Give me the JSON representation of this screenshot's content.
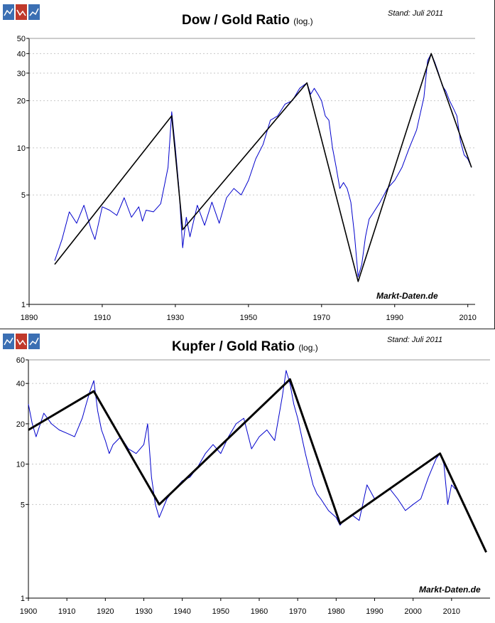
{
  "colors": {
    "series": "#0000cc",
    "trend": "#000000",
    "grid": "#c8c8c8",
    "logo_blue": "#3b6fb3",
    "logo_red": "#c0392b"
  },
  "chart_data": [
    {
      "type": "line",
      "title": "Dow / Gold Ratio",
      "title_suffix": "(log.)",
      "stand": "Stand: Juli 2011",
      "watermark": "Markt-Daten.de",
      "yscale": "log",
      "xlim": [
        1890,
        2012
      ],
      "ylim": [
        1,
        50
      ],
      "xticks": [
        1890,
        1910,
        1930,
        1950,
        1970,
        1990,
        2010
      ],
      "yticks": [
        1,
        5,
        10,
        20,
        30,
        40,
        50
      ],
      "gridlines": [
        5,
        10,
        20,
        30,
        40,
        50
      ],
      "series": [
        {
          "name": "Dow / Gold Ratio",
          "x": [
            1897,
            1899,
            1901,
            1903,
            1905,
            1907,
            1908,
            1910,
            1912,
            1914,
            1916,
            1918,
            1920,
            1921,
            1922,
            1924,
            1926,
            1928,
            1929,
            1930,
            1931,
            1932,
            1933,
            1934,
            1936,
            1938,
            1940,
            1942,
            1944,
            1946,
            1948,
            1950,
            1952,
            1954,
            1956,
            1958,
            1960,
            1962,
            1964,
            1966,
            1967,
            1968,
            1969,
            1970,
            1971,
            1972,
            1973,
            1974,
            1975,
            1976,
            1977,
            1978,
            1979,
            1980,
            1981,
            1982,
            1983,
            1984,
            1986,
            1988,
            1990,
            1992,
            1994,
            1996,
            1998,
            1999,
            2000,
            2001,
            2002,
            2003,
            2004,
            2005,
            2006,
            2007,
            2008,
            2009,
            2010,
            2011
          ],
          "y": [
            1.9,
            2.6,
            3.9,
            3.3,
            4.3,
            3.0,
            2.6,
            4.2,
            4.0,
            3.7,
            4.8,
            3.6,
            4.2,
            3.4,
            4.0,
            3.9,
            4.4,
            7.5,
            17,
            10,
            5.5,
            2.3,
            3.6,
            2.7,
            4.3,
            3.2,
            4.5,
            3.3,
            4.8,
            5.5,
            5.0,
            6.2,
            8.5,
            10.5,
            15,
            16,
            19,
            20,
            24,
            26,
            22,
            24,
            22,
            20,
            16,
            15,
            10,
            7.5,
            5.5,
            6.0,
            5.5,
            4.5,
            2.8,
            1.5,
            1.8,
            2.7,
            3.5,
            3.8,
            4.5,
            5.5,
            6.2,
            7.5,
            10,
            13,
            21,
            36,
            40,
            35,
            30,
            25,
            23,
            20,
            18,
            16,
            11,
            9,
            8.5,
            7.5
          ]
        },
        {
          "name": "Trend",
          "x": [
            1897,
            1929,
            1932,
            1966,
            1980,
            2000,
            2011
          ],
          "y": [
            1.8,
            16,
            3.0,
            26,
            1.4,
            40,
            7.5
          ]
        }
      ]
    },
    {
      "type": "line",
      "title": "Kupfer / Gold Ratio",
      "title_suffix": "(log.)",
      "stand": "Stand: Juli 2011",
      "watermark": "Markt-Daten.de",
      "yscale": "log",
      "xlim": [
        1900,
        2020
      ],
      "ylim": [
        1,
        60
      ],
      "xticks": [
        1900,
        1910,
        1920,
        1930,
        1940,
        1950,
        1960,
        1970,
        1980,
        1990,
        2000,
        2010
      ],
      "yticks": [
        1,
        5,
        10,
        20,
        40,
        60
      ],
      "gridlines": [
        5,
        10,
        20,
        40,
        60
      ],
      "series": [
        {
          "name": "Kupfer / Gold Ratio",
          "x": [
            1900,
            1901,
            1902,
            1904,
            1906,
            1908,
            1910,
            1912,
            1914,
            1915,
            1916,
            1917,
            1918,
            1919,
            1920,
            1921,
            1922,
            1924,
            1926,
            1928,
            1930,
            1931,
            1932,
            1933,
            1934,
            1936,
            1938,
            1940,
            1942,
            1944,
            1946,
            1948,
            1950,
            1952,
            1954,
            1956,
            1958,
            1960,
            1962,
            1964,
            1966,
            1967,
            1968,
            1969,
            1970,
            1972,
            1974,
            1975,
            1976,
            1978,
            1980,
            1981,
            1982,
            1984,
            1986,
            1988,
            1990,
            1992,
            1994,
            1996,
            1998,
            2000,
            2002,
            2004,
            2006,
            2007,
            2008,
            2009,
            2010,
            2011
          ],
          "y": [
            28,
            20,
            16,
            24,
            20,
            18,
            17,
            16,
            22,
            28,
            35,
            42,
            25,
            18,
            15,
            12,
            14,
            16,
            13,
            12,
            14,
            20,
            8,
            5,
            4,
            5.5,
            6.5,
            7.5,
            8,
            9.5,
            12,
            14,
            12,
            16,
            20,
            22,
            13,
            16,
            18,
            15,
            32,
            50,
            40,
            28,
            22,
            12,
            7,
            6,
            5.5,
            4.5,
            4,
            3.5,
            3.8,
            4.2,
            3.8,
            7,
            5.5,
            6,
            6.5,
            5.5,
            4.5,
            5,
            5.5,
            8,
            11,
            12,
            10,
            5,
            7,
            6.5
          ]
        },
        {
          "name": "Trend",
          "x": [
            1900,
            1917,
            1934,
            1968,
            1981,
            2007,
            2019
          ],
          "y": [
            18,
            35,
            5.0,
            43,
            3.6,
            12,
            2.2
          ]
        }
      ]
    }
  ]
}
